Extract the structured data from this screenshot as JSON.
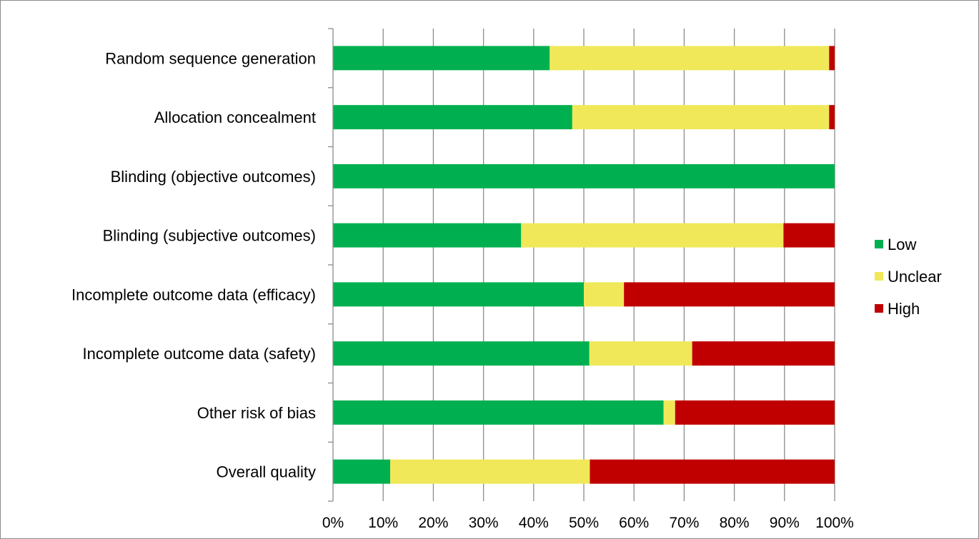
{
  "chart_data": {
    "type": "bar",
    "orientation": "horizontal",
    "stacked": "percent",
    "categories": [
      "Random sequence generation",
      "Allocation concealment",
      "Blinding (objective outcomes)",
      "Blinding (subjective outcomes)",
      "Incomplete outcome data (efficacy)",
      "Incomplete outcome data (safety)",
      "Other risk of bias",
      "Overall quality"
    ],
    "series": [
      {
        "name": "Low",
        "color": "#00b050",
        "values": [
          43.2,
          47.7,
          100,
          37.5,
          50,
          51.1,
          65.9,
          11.4
        ]
      },
      {
        "name": "Unclear",
        "color": "#f0e858",
        "values": [
          55.7,
          51.2,
          0,
          52.3,
          8,
          20.5,
          2.3,
          39.8
        ]
      },
      {
        "name": "High",
        "color": "#c00000",
        "values": [
          1.1,
          1.1,
          0,
          10.2,
          42,
          28.4,
          31.8,
          48.8
        ]
      }
    ],
    "x_ticks": [
      "0%",
      "10%",
      "20%",
      "30%",
      "40%",
      "50%",
      "60%",
      "70%",
      "80%",
      "90%",
      "100%"
    ],
    "xlim": [
      0,
      100
    ],
    "grid": "vertical",
    "legend_position": "right"
  }
}
